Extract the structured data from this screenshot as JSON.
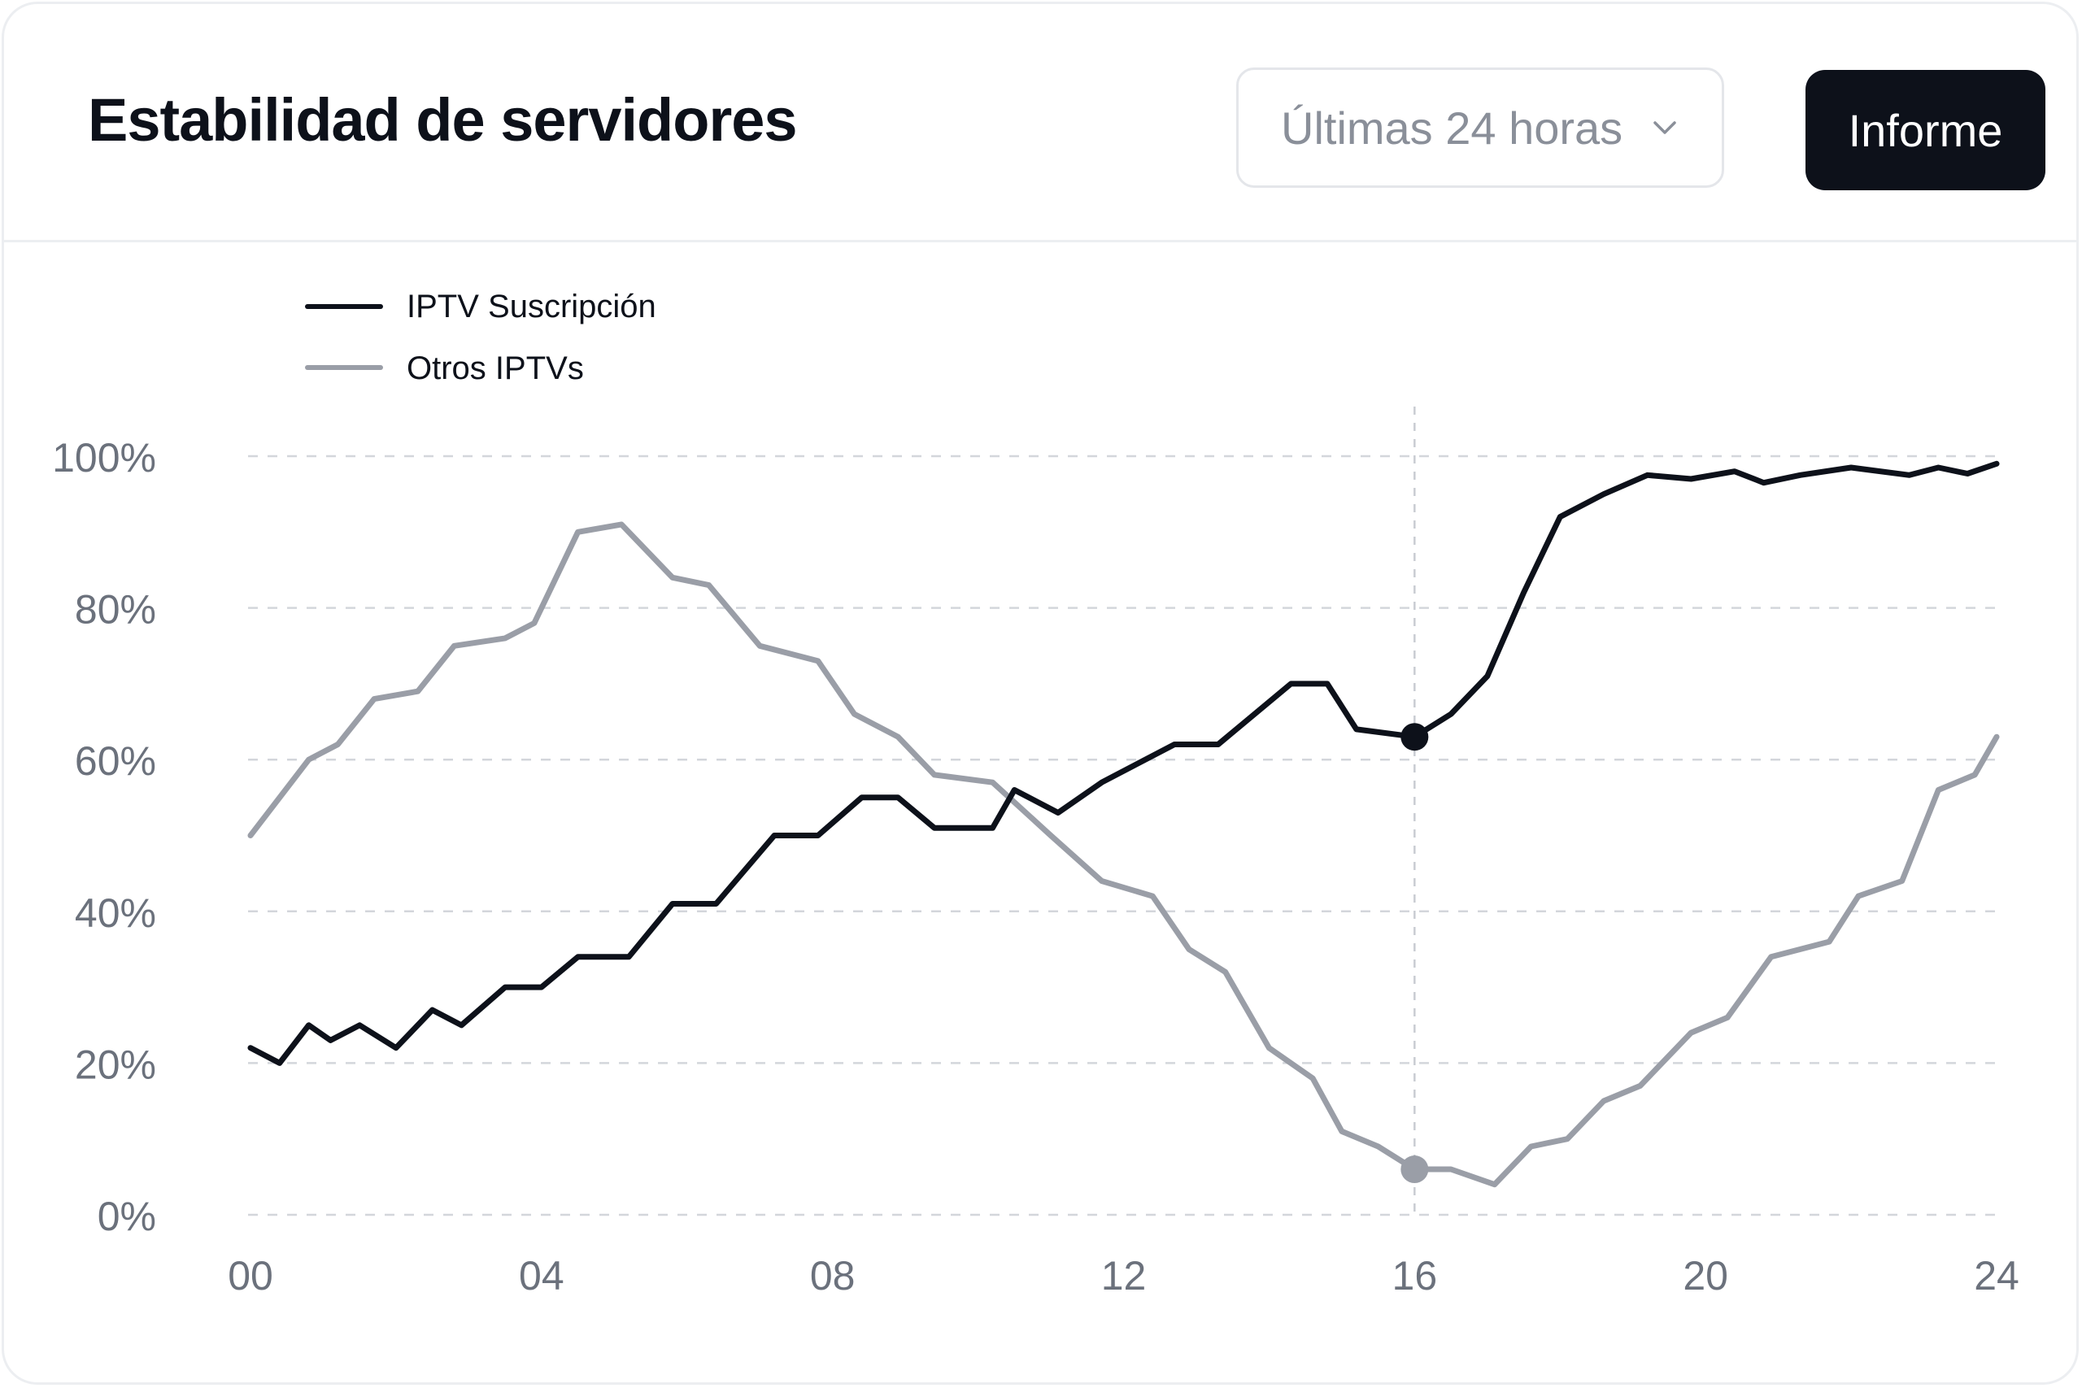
{
  "header": {
    "title": "Estabilidad de servidores",
    "range_select_value": "Últimas 24 horas",
    "report_button": "Informe"
  },
  "icons": {
    "range_dropdown": "chevron-down-icon"
  },
  "colors": {
    "primary_series": "#0d111a",
    "secondary_series": "#9a9ea7",
    "grid": "#d3d6db",
    "axis_text": "#6b717c",
    "button_bg": "#0d111a"
  },
  "chart_data": {
    "type": "line",
    "title": "",
    "xlabel": "",
    "ylabel": "",
    "x_ticks": [
      "00",
      "04",
      "08",
      "12",
      "16",
      "20",
      "24"
    ],
    "y_ticks": [
      "0%",
      "20%",
      "40%",
      "60%",
      "80%",
      "100%"
    ],
    "xlim": [
      0,
      24
    ],
    "ylim": [
      0,
      100
    ],
    "grid": "horizontal dashed",
    "legend_position": "top-left",
    "highlight_x": 16,
    "series": [
      {
        "name": "IPTV Suscripción",
        "x": [
          0,
          0.4,
          0.8,
          1.1,
          1.5,
          2,
          2.5,
          2.9,
          3.5,
          4,
          4.5,
          5.2,
          5.8,
          6.4,
          7.2,
          7.8,
          8.4,
          8.9,
          9.4,
          10.2,
          10.5,
          11.1,
          11.7,
          12.7,
          13.3,
          14.3,
          14.8,
          15.2,
          16,
          16.5,
          17,
          17.5,
          18,
          18.6,
          19.2,
          19.8,
          20.4,
          20.8,
          21.3,
          22,
          22.8,
          23.2,
          23.6,
          24
        ],
        "y": [
          22,
          20,
          25,
          23,
          25,
          22,
          27,
          25,
          30,
          30,
          34,
          34,
          41,
          41,
          50,
          50,
          55,
          55,
          51,
          51,
          56,
          53,
          57,
          62,
          62,
          70,
          70,
          64,
          63,
          66,
          71,
          82,
          92,
          95,
          97.5,
          97,
          98,
          96.5,
          97.5,
          98.5,
          97.5,
          98.5,
          97.7,
          99
        ]
      },
      {
        "name": "Otros IPTVs",
        "x": [
          0,
          0.8,
          1.2,
          1.7,
          2.3,
          2.8,
          3.5,
          3.9,
          4.5,
          5.1,
          5.8,
          6.3,
          7,
          7.8,
          8.3,
          8.9,
          9.4,
          10.2,
          11,
          11.7,
          12.4,
          12.9,
          13.4,
          14,
          14.6,
          15,
          15.5,
          16,
          16.5,
          17.1,
          17.6,
          18.1,
          18.6,
          19.1,
          19.8,
          20.3,
          20.9,
          21.7,
          22.1,
          22.7,
          23.2,
          23.7,
          24
        ],
        "y": [
          50,
          60,
          62,
          68,
          69,
          75,
          76,
          78,
          90,
          91,
          84,
          83,
          75,
          73,
          66,
          63,
          58,
          57,
          50,
          44,
          42,
          35,
          32,
          22,
          18,
          11,
          9,
          6,
          6,
          4,
          9,
          10,
          15,
          17,
          24,
          26,
          34,
          36,
          42,
          44,
          56,
          58,
          63
        ]
      }
    ]
  }
}
